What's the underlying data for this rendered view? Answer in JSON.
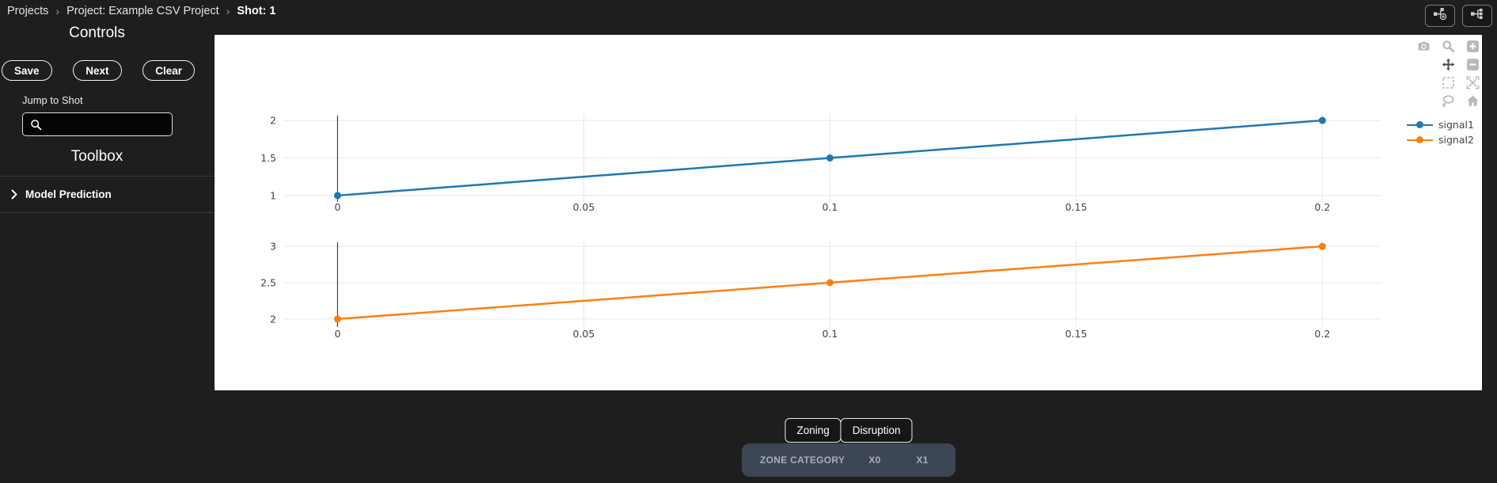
{
  "breadcrumb": {
    "separator": "›",
    "items": [
      "Projects",
      "Project: Example CSV Project",
      "Shot: 1"
    ]
  },
  "topbar": {
    "icon_buttons": [
      {
        "name": "add-node-graph-icon"
      },
      {
        "name": "node-tree-icon"
      }
    ]
  },
  "sidebar": {
    "controls_title": "Controls",
    "buttons": [
      {
        "label": "Save"
      },
      {
        "label": "Next"
      },
      {
        "label": "Clear"
      }
    ],
    "jump_to_shot_label": "Jump to Shot",
    "search": {
      "value": "",
      "placeholder": "",
      "icon": "search-icon"
    },
    "toolbox_title": "Toolbox",
    "toolbox_items": [
      {
        "label": "Model Prediction",
        "icon": "chevron-right-icon",
        "expanded": false
      }
    ]
  },
  "modebar": {
    "icons": [
      "camera",
      "zoom",
      "zoom-in",
      "pan",
      "zoom-out",
      "box-select",
      "autoscale",
      "lasso",
      "home"
    ]
  },
  "chart_data": [
    {
      "type": "line",
      "subplot": "top",
      "series": [
        {
          "name": "signal1",
          "color": "#1f77b4",
          "x": [
            0,
            0.1,
            0.2
          ],
          "y": [
            1,
            1.5,
            2
          ],
          "markers": true
        }
      ],
      "x_ticks": [
        0,
        0.05,
        0.1,
        0.15,
        0.2
      ],
      "x_tick_labels": [
        "0",
        "0.05",
        "0.1",
        "0.15",
        "0.2"
      ],
      "y_ticks": [
        1,
        1.5,
        2
      ],
      "y_tick_labels": [
        "1",
        "1.5",
        "2"
      ],
      "xlim": [
        -0.011,
        0.212
      ],
      "ylim": [
        0.915,
        2.085
      ],
      "grid": true,
      "cursor_x": 0,
      "legend_position": "right",
      "title": "",
      "xlabel": "",
      "ylabel": ""
    },
    {
      "type": "line",
      "subplot": "bottom",
      "series": [
        {
          "name": "signal2",
          "color": "#ff7f0e",
          "x": [
            0,
            0.1,
            0.2
          ],
          "y": [
            2,
            2.5,
            3
          ],
          "markers": true
        }
      ],
      "x_ticks": [
        0,
        0.05,
        0.1,
        0.15,
        0.2
      ],
      "x_tick_labels": [
        "0",
        "0.05",
        "0.1",
        "0.15",
        "0.2"
      ],
      "y_ticks": [
        2,
        2.5,
        3
      ],
      "y_tick_labels": [
        "2",
        "2.5",
        "3"
      ],
      "xlim": [
        -0.011,
        0.212
      ],
      "ylim": [
        1.89,
        3.077
      ],
      "grid": true,
      "cursor_x": 0,
      "legend_position": "right",
      "title": "",
      "xlabel": "",
      "ylabel": ""
    }
  ],
  "tabs": [
    {
      "label": "Zoning",
      "active": false
    },
    {
      "label": "Disruption",
      "active": false
    }
  ],
  "zone_table": {
    "headers": [
      "ZONE CATEGORY",
      "X0",
      "X1"
    ],
    "rows": []
  },
  "colors": {
    "signal1": "#1f77b4",
    "signal2": "#ff7f0e",
    "table_header_bg": "#3d4654",
    "panel_bg": "#ffffff",
    "page_bg": "#1e1e1e"
  }
}
